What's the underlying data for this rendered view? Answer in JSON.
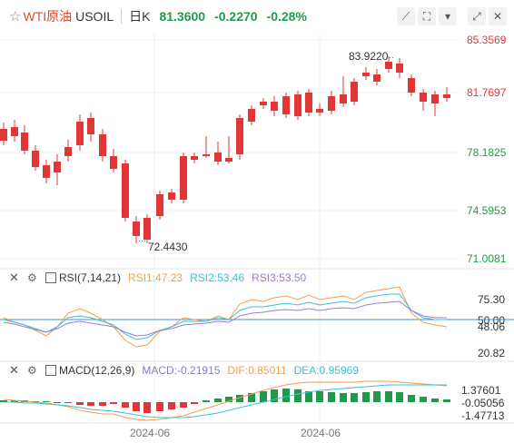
{
  "header": {
    "star_icon": "star-outline-icon",
    "name": "WTI原油",
    "symbol": "USOIL",
    "period": "日K",
    "price": "81.3600",
    "change": "-0.2270",
    "change_pct": "-0.28%",
    "tools": [
      "draw-line-icon",
      "fullscreen-icon",
      "save-icon",
      "expand-icon",
      "close-icon"
    ]
  },
  "main_chart": {
    "y_labels": [
      "85.3569",
      "81.7697",
      "78.1825",
      "74.5953",
      "71.0081"
    ],
    "high_label": "83.9220",
    "low_label": "72.4430",
    "up_color": "#1f9a4c",
    "down_color": "#e23636"
  },
  "rsi": {
    "title": "RSI(7,14,21)",
    "rsi1": "RSI1:47.23",
    "rsi2": "RSI2:53.46",
    "rsi3": "RSI3:53.50",
    "y_labels": [
      "75.30",
      "50.00",
      "48.06",
      "20.82"
    ],
    "colors": {
      "rsi1": "#f0a04b",
      "rsi2": "#3cc0d8",
      "rsi3": "#a07ad0"
    }
  },
  "macd": {
    "title": "MACD(12,26,9)",
    "macd": "MACD:-0.21915",
    "dif": "DIF:0.85011",
    "dea": "DEA:0.95969",
    "y_labels": [
      "1.37601",
      "-0.05056",
      "-1.47713"
    ],
    "colors": {
      "macd": "#8a74d8",
      "dif": "#f0a04b",
      "dea": "#3cc0d8"
    }
  },
  "x_labels": [
    "2024-06",
    "2024-06"
  ]
}
